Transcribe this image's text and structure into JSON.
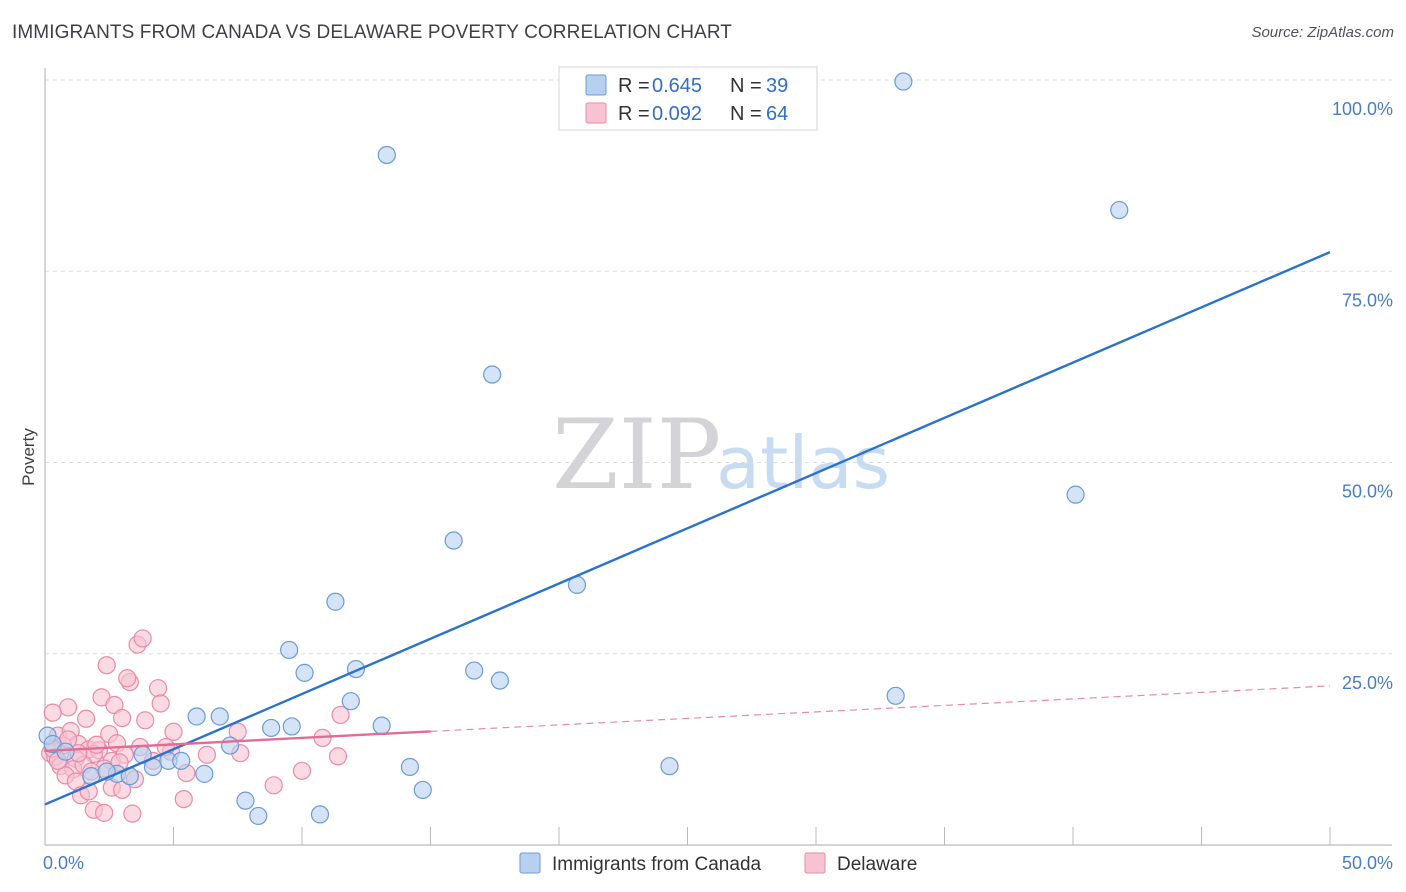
{
  "header": {
    "title": "IMMIGRANTS FROM CANADA VS DELAWARE POVERTY CORRELATION CHART",
    "source": "Source: ZipAtlas.com"
  },
  "watermark": {
    "zip": "ZIP",
    "atlas": "atlas"
  },
  "colors": {
    "blue_fill": "#b8d0ef",
    "blue_stroke": "#6b9bd6",
    "blue_line": "#2a72cc",
    "pink_fill": "#f7c3d2",
    "pink_stroke": "#e98aa8",
    "pink_line": "#e06c97",
    "grid": "#dcdcdc",
    "tick_text": "#4a7cc2"
  },
  "legend": {
    "rows": [
      {
        "r_label": "R =",
        "r_value": "0.645",
        "n_label": "N =",
        "n_value": "39"
      },
      {
        "r_label": "R =",
        "r_value": "0.092",
        "n_label": "N =",
        "n_value": "64"
      }
    ]
  },
  "bottom_legend": [
    "Immigrants from Canada",
    "Delaware"
  ],
  "chart_data": {
    "type": "scatter",
    "title": "IMMIGRANTS FROM CANADA VS DELAWARE POVERTY CORRELATION CHART",
    "xlabel": "",
    "ylabel": "Poverty",
    "xlim": [
      0,
      50
    ],
    "ylim": [
      0,
      100
    ],
    "x_tick_labels": [
      {
        "value": 0,
        "label": "0.0%"
      },
      {
        "value": 50,
        "label": "50.0%"
      }
    ],
    "y_tick_labels": [
      {
        "value": 25,
        "label": "25.0%"
      },
      {
        "value": 50,
        "label": "50.0%"
      },
      {
        "value": 75,
        "label": "75.0%"
      },
      {
        "value": 100,
        "label": "100.0%"
      }
    ],
    "x_minor_ticks": [
      0,
      5,
      10,
      15,
      20,
      25,
      30,
      35,
      40,
      45,
      50
    ],
    "grid": true,
    "series": [
      {
        "name": "Immigrants from Canada",
        "color": "blue",
        "R": 0.645,
        "N": 39,
        "trend": {
          "x0": 0,
          "y0": 5.3,
          "x1": 50,
          "y1": 77.5,
          "solid_until": 50
        },
        "points": [
          [
            13.3,
            90.2
          ],
          [
            33.4,
            99.8
          ],
          [
            41.8,
            83.0
          ],
          [
            17.4,
            61.5
          ],
          [
            40.1,
            45.8
          ],
          [
            15.9,
            39.8
          ],
          [
            20.7,
            34.0
          ],
          [
            11.3,
            31.8
          ],
          [
            9.5,
            25.5
          ],
          [
            10.1,
            22.5
          ],
          [
            12.1,
            23.0
          ],
          [
            16.7,
            22.8
          ],
          [
            17.7,
            21.5
          ],
          [
            11.9,
            18.8
          ],
          [
            33.1,
            19.5
          ],
          [
            5.9,
            16.8
          ],
          [
            6.8,
            16.8
          ],
          [
            8.8,
            15.3
          ],
          [
            9.6,
            15.5
          ],
          [
            13.1,
            15.6
          ],
          [
            7.2,
            13.0
          ],
          [
            3.8,
            11.8
          ],
          [
            4.8,
            11.0
          ],
          [
            5.3,
            11.0
          ],
          [
            4.2,
            10.2
          ],
          [
            6.2,
            9.3
          ],
          [
            2.8,
            9.3
          ],
          [
            3.3,
            9.0
          ],
          [
            1.8,
            9.0
          ],
          [
            2.4,
            9.6
          ],
          [
            14.2,
            10.2
          ],
          [
            24.3,
            10.3
          ],
          [
            0.1,
            14.3
          ],
          [
            0.3,
            13.2
          ],
          [
            0.8,
            12.2
          ],
          [
            7.8,
            5.8
          ],
          [
            8.3,
            3.8
          ],
          [
            10.7,
            4.0
          ],
          [
            14.7,
            7.2
          ]
        ]
      },
      {
        "name": "Delaware",
        "color": "pink",
        "R": 0.092,
        "N": 64,
        "trend": {
          "x0": 0,
          "y0": 12.3,
          "x1": 50,
          "y1": 20.8,
          "solid_until": 15
        },
        "points": [
          [
            3.6,
            26.2
          ],
          [
            3.8,
            27.0
          ],
          [
            2.4,
            23.5
          ],
          [
            4.4,
            20.5
          ],
          [
            3.3,
            21.3
          ],
          [
            3.2,
            21.8
          ],
          [
            2.2,
            19.3
          ],
          [
            2.7,
            18.3
          ],
          [
            0.9,
            18.0
          ],
          [
            0.3,
            17.3
          ],
          [
            4.5,
            18.5
          ],
          [
            1.6,
            16.5
          ],
          [
            3.0,
            16.6
          ],
          [
            3.9,
            16.3
          ],
          [
            11.5,
            17.0
          ],
          [
            0.5,
            14.3
          ],
          [
            1.0,
            14.9
          ],
          [
            2.5,
            14.5
          ],
          [
            5.0,
            14.8
          ],
          [
            7.5,
            14.8
          ],
          [
            2.8,
            13.3
          ],
          [
            1.3,
            13.2
          ],
          [
            0.7,
            13.0
          ],
          [
            1.7,
            12.5
          ],
          [
            2.1,
            12.4
          ],
          [
            3.7,
            12.8
          ],
          [
            4.9,
            12.2
          ],
          [
            10.8,
            14.0
          ],
          [
            0.2,
            12.0
          ],
          [
            0.4,
            11.5
          ],
          [
            1.2,
            11.3
          ],
          [
            1.9,
            11.9
          ],
          [
            2.6,
            11.0
          ],
          [
            3.1,
            11.8
          ],
          [
            4.7,
            12.8
          ],
          [
            7.6,
            12.0
          ],
          [
            11.4,
            11.6
          ],
          [
            0.6,
            10.3
          ],
          [
            1.1,
            9.9
          ],
          [
            1.5,
            10.5
          ],
          [
            2.3,
            10.0
          ],
          [
            2.9,
            10.8
          ],
          [
            0.8,
            9.1
          ],
          [
            1.8,
            9.6
          ],
          [
            5.5,
            9.4
          ],
          [
            10.0,
            9.7
          ],
          [
            1.2,
            8.3
          ],
          [
            3.5,
            8.6
          ],
          [
            4.2,
            11.0
          ],
          [
            8.9,
            7.8
          ],
          [
            1.4,
            6.5
          ],
          [
            1.7,
            7.0
          ],
          [
            2.6,
            7.5
          ],
          [
            3.0,
            7.2
          ],
          [
            5.4,
            6.0
          ],
          [
            1.9,
            4.6
          ],
          [
            2.3,
            4.2
          ],
          [
            3.4,
            4.1
          ],
          [
            0.3,
            12.6
          ],
          [
            0.9,
            13.8
          ],
          [
            2.0,
            13.1
          ],
          [
            6.3,
            11.8
          ],
          [
            0.5,
            11.0
          ],
          [
            1.3,
            12.0
          ]
        ]
      }
    ]
  }
}
